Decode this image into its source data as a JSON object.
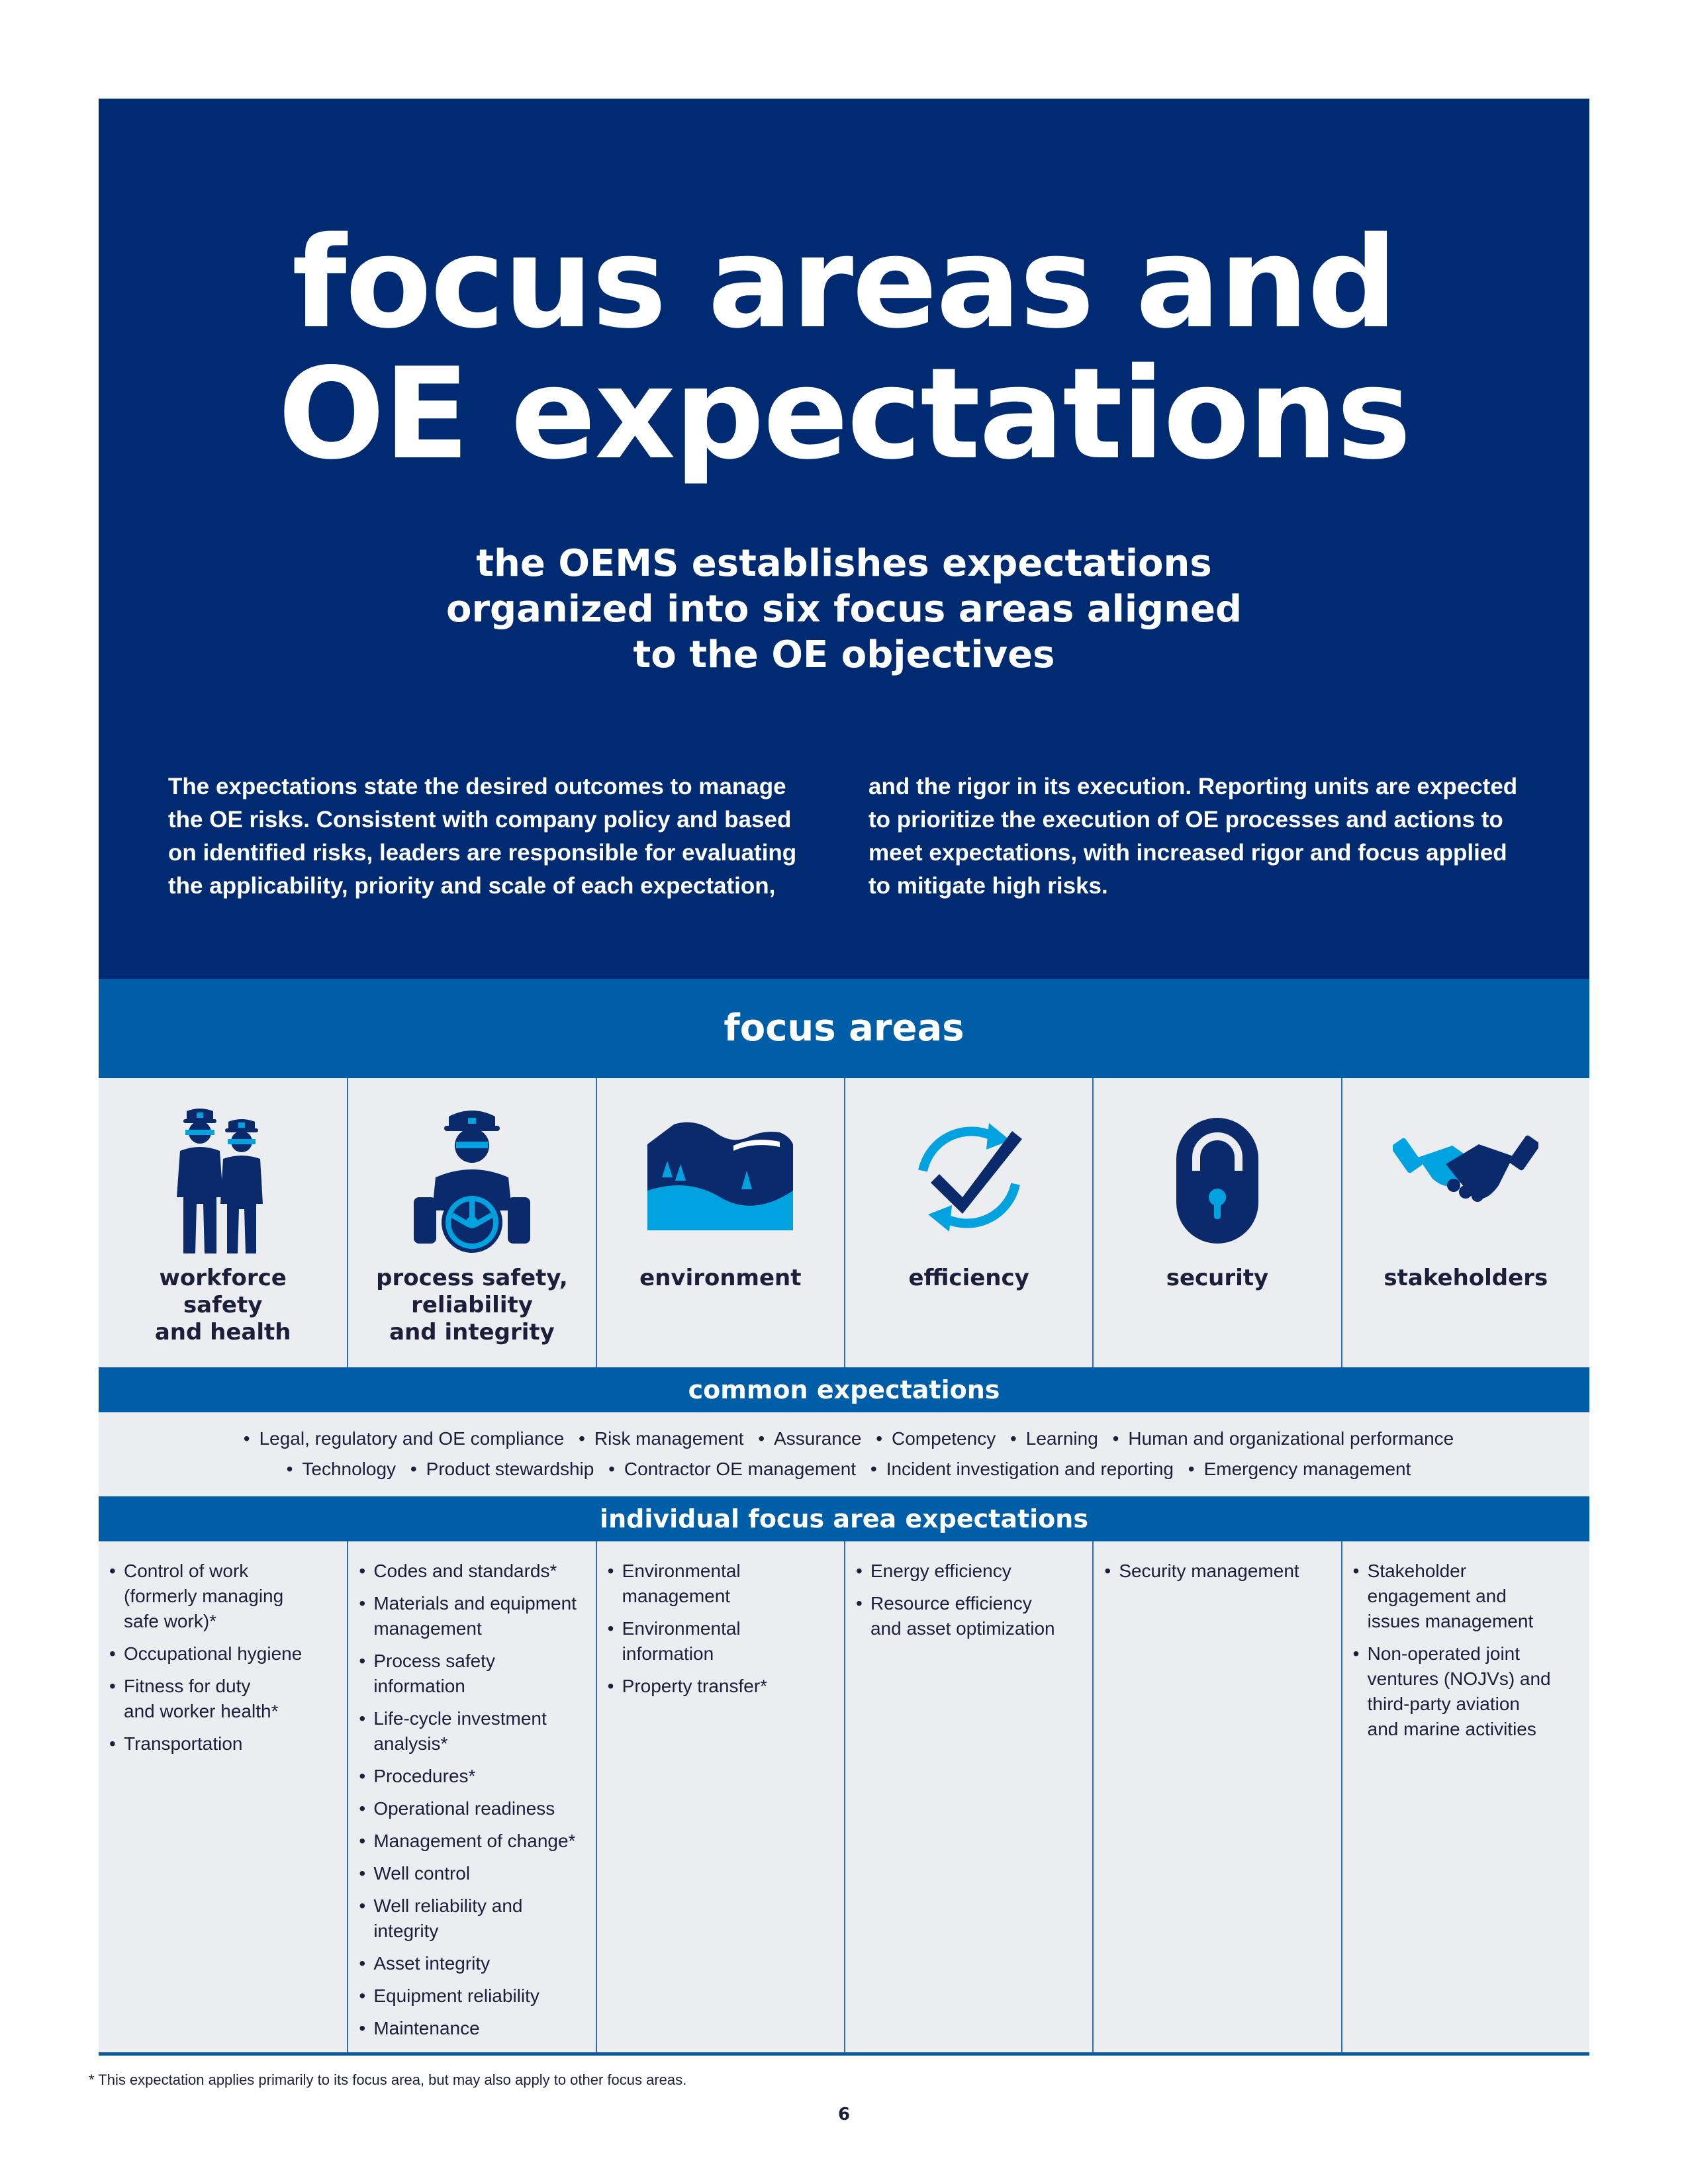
{
  "header": {
    "title_lines": [
      "focus areas and",
      "OE expectations"
    ],
    "subtitle_lines": [
      "the OEMS establishes expectations",
      "organized into six focus areas aligned",
      "to the OE objectives"
    ],
    "intro_col1": "The expectations state the desired outcomes to manage the OE risks. Consistent with company policy and based on identified risks, leaders are responsible for evaluating the applicability, priority and scale of each expectation,",
    "intro_col2": "and the rigor in its execution. Reporting units are expected to prioritize the execution of OE processes and actions to meet expectations, with increased rigor and focus applied to mitigate high risks."
  },
  "focus_areas": {
    "heading": "focus areas",
    "items": [
      {
        "label_lines": [
          "workforce",
          "safety",
          "and health"
        ],
        "icon": "workers-icon"
      },
      {
        "label_lines": [
          "process safety,",
          "reliability",
          "and integrity"
        ],
        "icon": "operator-valve-icon"
      },
      {
        "label_lines": [
          "environment"
        ],
        "icon": "landscape-icon"
      },
      {
        "label_lines": [
          "efficiency"
        ],
        "icon": "checkmark-cycle-icon"
      },
      {
        "label_lines": [
          "security"
        ],
        "icon": "padlock-icon"
      },
      {
        "label_lines": [
          "stakeholders"
        ],
        "icon": "handshake-icon"
      }
    ]
  },
  "common_expectations": {
    "heading": "common expectations",
    "line1": [
      "Legal, regulatory and OE compliance",
      "Risk management",
      "Assurance",
      "Competency",
      "Learning",
      "Human and organizational performance"
    ],
    "line2": [
      "Technology",
      "Product stewardship",
      "Contractor OE management",
      "Incident investigation and reporting",
      "Emergency management"
    ]
  },
  "individual_expectations": {
    "heading": "individual focus area expectations",
    "columns": [
      [
        [
          "Control of work",
          "(formerly managing",
          "safe work)*"
        ],
        [
          "Occupational hygiene"
        ],
        [
          "Fitness for duty",
          "and worker health*"
        ],
        [
          "Transportation"
        ]
      ],
      [
        [
          "Codes and standards*"
        ],
        [
          "Materials and equipment",
          "management"
        ],
        [
          "Process safety",
          "information"
        ],
        [
          "Life-cycle investment",
          "analysis*"
        ],
        [
          "Procedures*"
        ],
        [
          "Operational readiness"
        ],
        [
          "Management of change*"
        ],
        [
          "Well control"
        ],
        [
          "Well reliability and",
          "integrity"
        ],
        [
          "Asset integrity"
        ],
        [
          "Equipment reliability"
        ],
        [
          "Maintenance"
        ]
      ],
      [
        [
          "Environmental",
          "management"
        ],
        [
          "Environmental",
          "information"
        ],
        [
          "Property transfer*"
        ]
      ],
      [
        [
          "Energy efficiency"
        ],
        [
          "Resource efficiency",
          "and asset optimization"
        ]
      ],
      [
        [
          "Security management"
        ]
      ],
      [
        [
          "Stakeholder",
          "engagement and",
          "issues management"
        ],
        [
          "Non-operated joint",
          "ventures (NOJVs) and",
          "third-party aviation",
          "and marine activities"
        ]
      ]
    ]
  },
  "footer": {
    "footnote": "* This expectation applies primarily to its focus area, but may also apply to other focus areas.",
    "page_number": "6"
  },
  "colors": {
    "navy": "#002b73",
    "band_blue": "#005ea8",
    "icon_light": "#00a3e0",
    "icon_dark": "#0b2a6b",
    "panel_gray": "#ebedf0"
  }
}
